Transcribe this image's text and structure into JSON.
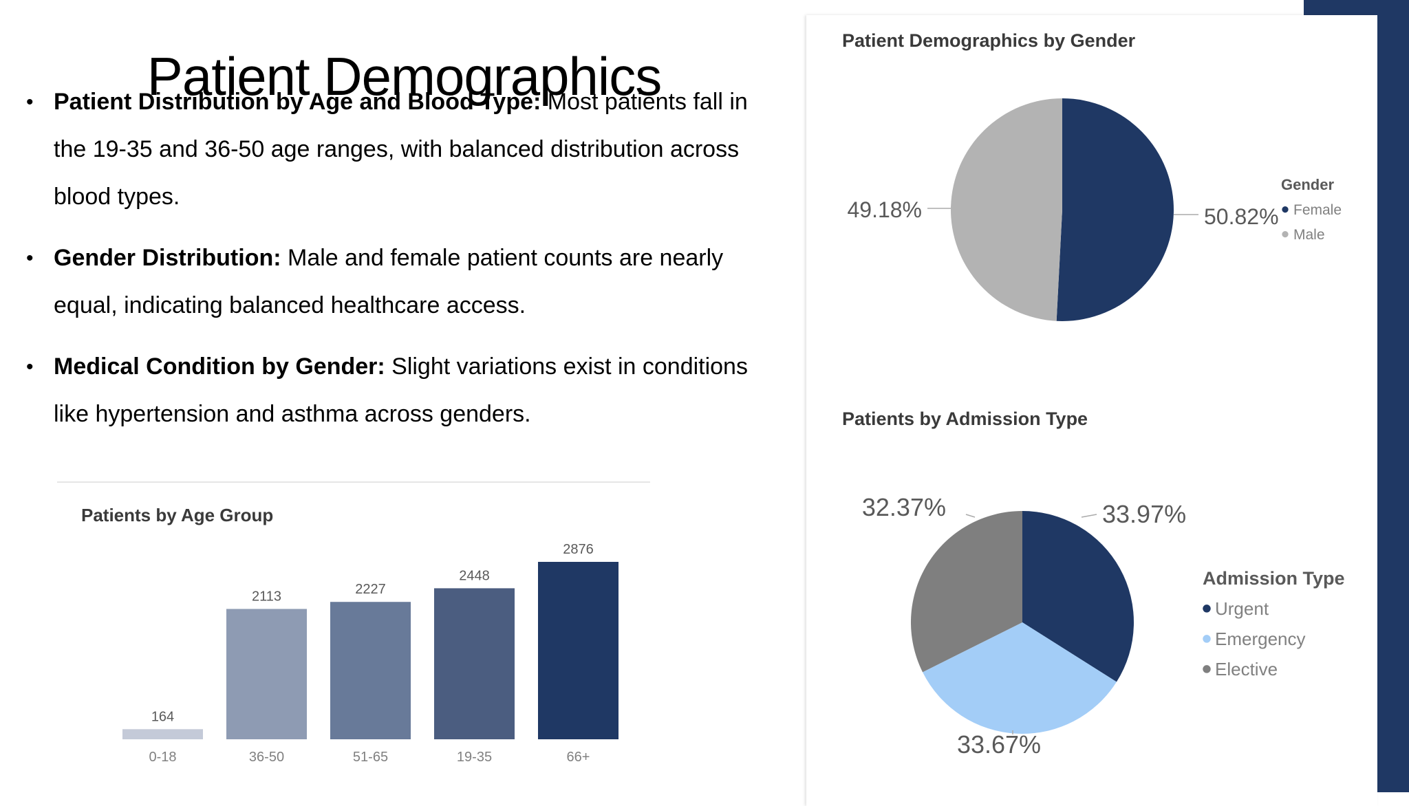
{
  "slide": {
    "title": "Patient Demographics",
    "bullets": [
      {
        "heading": "Patient Distribution by Age and Blood Type:",
        "text": " Most patients fall in the 19-35 and 36-50 age ranges, with balanced distribution across blood types."
      },
      {
        "heading": "Gender Distribution:",
        "text": " Male and female patient counts are nearly equal, indicating balanced healthcare access."
      },
      {
        "heading": "Medical Condition by Gender:",
        "text": " Slight variations exist in conditions like hypertension and asthma across genders."
      }
    ],
    "bullet_symbol": "•",
    "colors": {
      "accent": "#1f3864"
    }
  },
  "chart_data": [
    {
      "type": "pie",
      "title": "Patient Demographics by Gender",
      "legend_title": "Gender",
      "legend_position": "right",
      "slices": [
        {
          "label": "Female",
          "value": 50.82,
          "display": "50.82%",
          "color": "#1f3864"
        },
        {
          "label": "Male",
          "value": 49.18,
          "display": "49.18%",
          "color": "#b3b3b3"
        }
      ]
    },
    {
      "type": "pie",
      "title": "Patients by Admission Type",
      "legend_title": "Admission Type",
      "legend_position": "right",
      "slices": [
        {
          "label": "Urgent",
          "value": 33.97,
          "display": "33.97%",
          "color": "#1f3864"
        },
        {
          "label": "Emergency",
          "value": 33.67,
          "display": "33.67%",
          "color": "#a3cdf7"
        },
        {
          "label": "Elective",
          "value": 32.37,
          "display": "32.37%",
          "color": "#7f7f7f"
        }
      ]
    },
    {
      "type": "bar",
      "title": "Patients by Age Group",
      "categories": [
        "0-18",
        "36-50",
        "51-65",
        "19-35",
        "66+"
      ],
      "values": [
        164,
        2113,
        2227,
        2448,
        2876
      ],
      "colors": [
        "#c4cad8",
        "#8e9bb3",
        "#687a99",
        "#4b5d80",
        "#1f3864"
      ],
      "ylim": [
        0,
        2876
      ],
      "grid": false
    }
  ]
}
